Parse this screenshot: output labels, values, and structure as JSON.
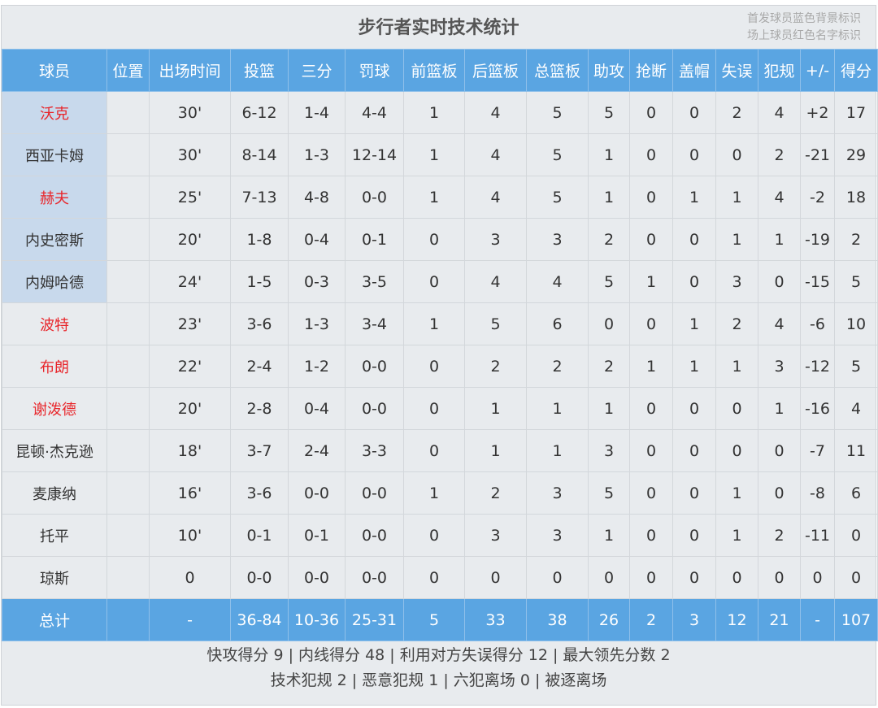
{
  "title": "步行者实时技术统计",
  "legend": [
    "首发球员蓝色背景标识",
    "场上球员红色名字标识"
  ],
  "colors": {
    "header_bg": "#5aa5e2",
    "starter_bg": "#c8d9ec",
    "on_court_name": "#e8262b"
  },
  "columns": [
    "球员",
    "位置",
    "出场时间",
    "投篮",
    "三分",
    "罚球",
    "前篮板",
    "后篮板",
    "总篮板",
    "助攻",
    "抢断",
    "盖帽",
    "失误",
    "犯规",
    "+/-",
    "得分"
  ],
  "rows": [
    {
      "name": "沃克",
      "starter": true,
      "on_court": true,
      "stats": [
        "",
        "30'",
        "6-12",
        "1-4",
        "4-4",
        "1",
        "4",
        "5",
        "5",
        "0",
        "0",
        "2",
        "4",
        "+2",
        "17"
      ]
    },
    {
      "name": "西亚卡姆",
      "starter": true,
      "on_court": false,
      "stats": [
        "",
        "30'",
        "8-14",
        "1-3",
        "12-14",
        "1",
        "4",
        "5",
        "1",
        "0",
        "0",
        "0",
        "2",
        "-21",
        "29"
      ]
    },
    {
      "name": "赫夫",
      "starter": true,
      "on_court": true,
      "stats": [
        "",
        "25'",
        "7-13",
        "4-8",
        "0-0",
        "1",
        "4",
        "5",
        "1",
        "0",
        "1",
        "1",
        "4",
        "-2",
        "18"
      ]
    },
    {
      "name": "内史密斯",
      "starter": true,
      "on_court": false,
      "stats": [
        "",
        "20'",
        "1-8",
        "0-4",
        "0-1",
        "0",
        "3",
        "3",
        "2",
        "0",
        "0",
        "1",
        "1",
        "-19",
        "2"
      ]
    },
    {
      "name": "内姆哈德",
      "starter": true,
      "on_court": false,
      "stats": [
        "",
        "24'",
        "1-5",
        "0-3",
        "3-5",
        "0",
        "4",
        "4",
        "5",
        "1",
        "0",
        "3",
        "0",
        "-15",
        "5"
      ]
    },
    {
      "name": "波特",
      "starter": false,
      "on_court": true,
      "stats": [
        "",
        "23'",
        "3-6",
        "1-3",
        "3-4",
        "1",
        "5",
        "6",
        "0",
        "0",
        "1",
        "2",
        "4",
        "-6",
        "10"
      ]
    },
    {
      "name": "布朗",
      "starter": false,
      "on_court": true,
      "stats": [
        "",
        "22'",
        "2-4",
        "1-2",
        "0-0",
        "0",
        "2",
        "2",
        "2",
        "1",
        "1",
        "1",
        "3",
        "-12",
        "5"
      ]
    },
    {
      "name": "谢泼德",
      "starter": false,
      "on_court": true,
      "stats": [
        "",
        "20'",
        "2-8",
        "0-4",
        "0-0",
        "0",
        "1",
        "1",
        "1",
        "0",
        "0",
        "0",
        "1",
        "-16",
        "4"
      ]
    },
    {
      "name": "昆顿·杰克逊",
      "starter": false,
      "on_court": false,
      "stats": [
        "",
        "18'",
        "3-7",
        "2-4",
        "3-3",
        "0",
        "1",
        "1",
        "3",
        "0",
        "0",
        "0",
        "0",
        "-7",
        "11"
      ]
    },
    {
      "name": "麦康纳",
      "starter": false,
      "on_court": false,
      "stats": [
        "",
        "16'",
        "3-6",
        "0-0",
        "0-0",
        "1",
        "2",
        "3",
        "5",
        "0",
        "0",
        "1",
        "0",
        "-8",
        "6"
      ]
    },
    {
      "name": "托平",
      "starter": false,
      "on_court": false,
      "stats": [
        "",
        "10'",
        "0-1",
        "0-1",
        "0-0",
        "0",
        "3",
        "3",
        "1",
        "0",
        "0",
        "1",
        "2",
        "-11",
        "0"
      ]
    },
    {
      "name": "琼斯",
      "starter": false,
      "on_court": false,
      "stats": [
        "",
        "0",
        "0-0",
        "0-0",
        "0-0",
        "0",
        "0",
        "0",
        "0",
        "0",
        "0",
        "0",
        "0",
        "0",
        "0"
      ]
    }
  ],
  "total": {
    "label": "总计",
    "stats": [
      "",
      "-",
      "36-84",
      "10-36",
      "25-31",
      "5",
      "33",
      "38",
      "26",
      "2",
      "3",
      "12",
      "21",
      "-",
      "107"
    ]
  },
  "footer": [
    "快攻得分 9 | 内线得分 48 | 利用对方失误得分 12 | 最大领先分数 2",
    "技术犯规 2 | 恶意犯规 1 | 六犯离场 0 | 被逐离场"
  ]
}
